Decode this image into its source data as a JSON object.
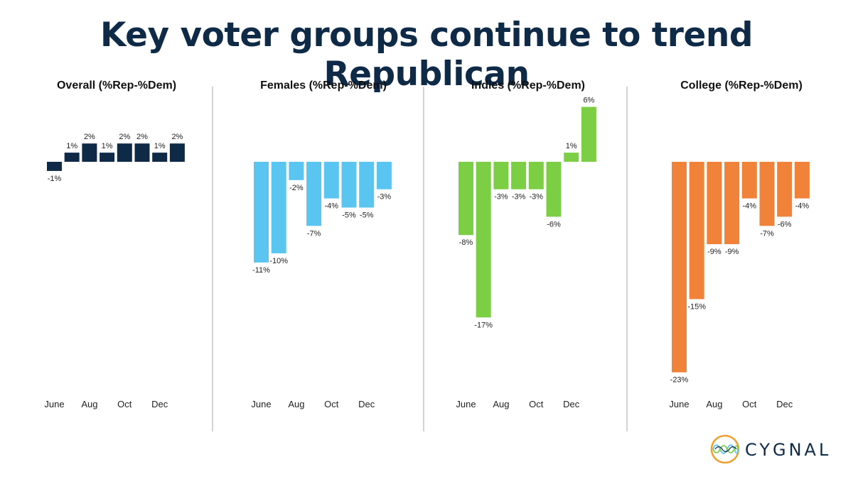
{
  "title": "Key voter groups continue to trend Republican",
  "logo_text": "CYGNAL",
  "x_tick_labels": [
    "June",
    "Aug",
    "Oct",
    "Dec"
  ],
  "chart_data": [
    {
      "type": "bar",
      "title": "Overall (%Rep-%Dem)",
      "color": "#0e2a47",
      "values": [
        -1,
        1,
        2,
        1,
        2,
        2,
        1,
        2
      ],
      "labels": [
        "-1%",
        "1%",
        "2%",
        "1%",
        "2%",
        "2%",
        "1%",
        "2%"
      ]
    },
    {
      "type": "bar",
      "title": "Females (%Rep-%Dem)",
      "color": "#5bc5f2",
      "values": [
        -11,
        -10,
        -2,
        -7,
        -4,
        -5,
        -5,
        -3
      ],
      "labels": [
        "-11%",
        "-10%",
        "-2%",
        "-7%",
        "-4%",
        "-5%",
        "-5%",
        "-3%"
      ]
    },
    {
      "type": "bar",
      "title": "Indies (%Rep-%Dem)",
      "color": "#7ccf45",
      "values": [
        -8,
        -17,
        -3,
        -3,
        -3,
        -6,
        1,
        6
      ],
      "labels": [
        "-8%",
        "-17%",
        "-3%",
        "-3%",
        "-3%",
        "-6%",
        "1%",
        "6%"
      ]
    },
    {
      "type": "bar",
      "title": "College (%Rep-%Dem)",
      "color": "#f0823a",
      "values": [
        -23,
        -15,
        -9,
        -9,
        -4,
        -7,
        -6,
        -4
      ],
      "labels": [
        "-23%",
        "-15%",
        "-9%",
        "-9%",
        "-4%",
        "-7%",
        "-6%",
        "-4%"
      ]
    }
  ]
}
